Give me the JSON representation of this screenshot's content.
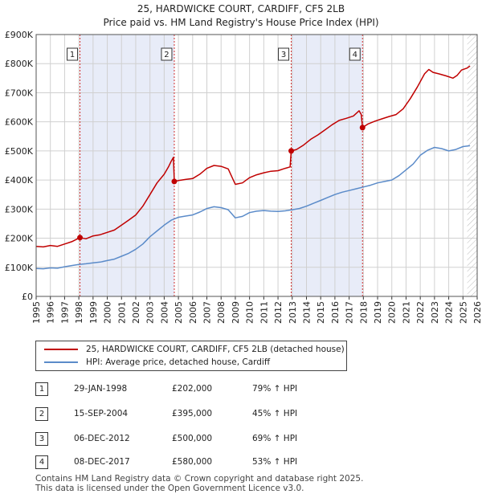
{
  "title_line1": "25, HARDWICKE COURT, CARDIFF, CF5 2LB",
  "title_line2": "Price paid vs. HM Land Registry's House Price Index (HPI)",
  "colors": {
    "property": "#c00000",
    "hpi": "#5b8bc9",
    "shade": "#e8ecf8",
    "grid": "#d0d0d0"
  },
  "chart_data": {
    "type": "line",
    "xlim": [
      1995,
      2026
    ],
    "ylim": [
      0,
      900000
    ],
    "x_ticks": [
      "1995",
      "1996",
      "1997",
      "1998",
      "1999",
      "2000",
      "2001",
      "2002",
      "2003",
      "2004",
      "2005",
      "2006",
      "2007",
      "2008",
      "2009",
      "2010",
      "2011",
      "2012",
      "2013",
      "2014",
      "2015",
      "2016",
      "2017",
      "2018",
      "2019",
      "2020",
      "2021",
      "2022",
      "2023",
      "2024",
      "2025",
      "2026"
    ],
    "y_ticks": [
      {
        "value": 0,
        "label": "£0"
      },
      {
        "value": 100000,
        "label": "£100K"
      },
      {
        "value": 200000,
        "label": "£200K"
      },
      {
        "value": 300000,
        "label": "£300K"
      },
      {
        "value": 400000,
        "label": "£400K"
      },
      {
        "value": 500000,
        "label": "£500K"
      },
      {
        "value": 600000,
        "label": "£600K"
      },
      {
        "value": 700000,
        "label": "£700K"
      },
      {
        "value": 800000,
        "label": "£800K"
      },
      {
        "value": 900000,
        "label": "£900K"
      }
    ],
    "shaded_ranges": [
      [
        1998.08,
        2004.71
      ],
      [
        2012.93,
        2017.94
      ]
    ],
    "hatched_from": 2025.3,
    "series": [
      {
        "name": "25, HARDWICKE COURT, CARDIFF, CF5 2LB (detached house)",
        "color": "#c00000",
        "points": [
          [
            1995.0,
            172000
          ],
          [
            1995.5,
            170000
          ],
          [
            1996.0,
            175000
          ],
          [
            1996.5,
            172000
          ],
          [
            1997.0,
            180000
          ],
          [
            1997.5,
            188000
          ],
          [
            1998.08,
            202000
          ],
          [
            1998.5,
            198000
          ],
          [
            1999.0,
            208000
          ],
          [
            1999.5,
            212000
          ],
          [
            2000.0,
            220000
          ],
          [
            2000.5,
            228000
          ],
          [
            2001.0,
            245000
          ],
          [
            2001.5,
            262000
          ],
          [
            2002.0,
            280000
          ],
          [
            2002.5,
            310000
          ],
          [
            2003.0,
            350000
          ],
          [
            2003.5,
            390000
          ],
          [
            2004.0,
            420000
          ],
          [
            2004.3,
            445000
          ],
          [
            2004.5,
            465000
          ],
          [
            2004.65,
            478000
          ],
          [
            2004.71,
            395000
          ],
          [
            2005.0,
            398000
          ],
          [
            2005.5,
            402000
          ],
          [
            2006.0,
            405000
          ],
          [
            2006.5,
            420000
          ],
          [
            2007.0,
            440000
          ],
          [
            2007.5,
            450000
          ],
          [
            2008.0,
            447000
          ],
          [
            2008.5,
            438000
          ],
          [
            2009.0,
            385000
          ],
          [
            2009.5,
            390000
          ],
          [
            2010.0,
            408000
          ],
          [
            2010.5,
            418000
          ],
          [
            2011.0,
            425000
          ],
          [
            2011.5,
            430000
          ],
          [
            2012.0,
            432000
          ],
          [
            2012.5,
            440000
          ],
          [
            2012.85,
            445000
          ],
          [
            2012.93,
            500000
          ],
          [
            2013.3,
            505000
          ],
          [
            2013.8,
            520000
          ],
          [
            2014.3,
            540000
          ],
          [
            2014.8,
            555000
          ],
          [
            2015.3,
            572000
          ],
          [
            2015.8,
            590000
          ],
          [
            2016.3,
            605000
          ],
          [
            2016.8,
            612000
          ],
          [
            2017.3,
            620000
          ],
          [
            2017.7,
            638000
          ],
          [
            2017.85,
            625000
          ],
          [
            2017.94,
            580000
          ],
          [
            2018.3,
            592000
          ],
          [
            2018.8,
            602000
          ],
          [
            2019.3,
            610000
          ],
          [
            2019.8,
            618000
          ],
          [
            2020.3,
            625000
          ],
          [
            2020.8,
            645000
          ],
          [
            2021.3,
            680000
          ],
          [
            2021.8,
            720000
          ],
          [
            2022.3,
            765000
          ],
          [
            2022.6,
            780000
          ],
          [
            2022.9,
            770000
          ],
          [
            2023.3,
            765000
          ],
          [
            2023.8,
            758000
          ],
          [
            2024.3,
            750000
          ],
          [
            2024.6,
            760000
          ],
          [
            2024.9,
            778000
          ],
          [
            2025.3,
            785000
          ],
          [
            2025.5,
            792000
          ]
        ]
      },
      {
        "name": "HPI: Average price, detached house, Cardiff",
        "color": "#5b8bc9",
        "points": [
          [
            1995.0,
            96000
          ],
          [
            1995.5,
            95000
          ],
          [
            1996.0,
            98000
          ],
          [
            1996.5,
            97000
          ],
          [
            1997.0,
            102000
          ],
          [
            1997.5,
            106000
          ],
          [
            1998.0,
            110000
          ],
          [
            1998.5,
            112000
          ],
          [
            1999.0,
            115000
          ],
          [
            1999.5,
            118000
          ],
          [
            2000.0,
            123000
          ],
          [
            2000.5,
            128000
          ],
          [
            2001.0,
            138000
          ],
          [
            2001.5,
            148000
          ],
          [
            2002.0,
            162000
          ],
          [
            2002.5,
            180000
          ],
          [
            2003.0,
            205000
          ],
          [
            2003.5,
            225000
          ],
          [
            2004.0,
            245000
          ],
          [
            2004.5,
            262000
          ],
          [
            2005.0,
            272000
          ],
          [
            2005.5,
            276000
          ],
          [
            2006.0,
            280000
          ],
          [
            2006.5,
            290000
          ],
          [
            2007.0,
            302000
          ],
          [
            2007.5,
            308000
          ],
          [
            2008.0,
            305000
          ],
          [
            2008.5,
            298000
          ],
          [
            2009.0,
            270000
          ],
          [
            2009.5,
            275000
          ],
          [
            2010.0,
            288000
          ],
          [
            2010.5,
            293000
          ],
          [
            2011.0,
            295000
          ],
          [
            2011.5,
            293000
          ],
          [
            2012.0,
            292000
          ],
          [
            2012.5,
            294000
          ],
          [
            2013.0,
            298000
          ],
          [
            2013.5,
            302000
          ],
          [
            2014.0,
            310000
          ],
          [
            2014.5,
            320000
          ],
          [
            2015.0,
            330000
          ],
          [
            2015.5,
            340000
          ],
          [
            2016.0,
            350000
          ],
          [
            2016.5,
            358000
          ],
          [
            2017.0,
            364000
          ],
          [
            2017.5,
            370000
          ],
          [
            2018.0,
            376000
          ],
          [
            2018.5,
            382000
          ],
          [
            2019.0,
            390000
          ],
          [
            2019.5,
            395000
          ],
          [
            2020.0,
            400000
          ],
          [
            2020.5,
            415000
          ],
          [
            2021.0,
            435000
          ],
          [
            2021.5,
            455000
          ],
          [
            2022.0,
            485000
          ],
          [
            2022.5,
            502000
          ],
          [
            2023.0,
            512000
          ],
          [
            2023.5,
            508000
          ],
          [
            2024.0,
            500000
          ],
          [
            2024.5,
            505000
          ],
          [
            2025.0,
            515000
          ],
          [
            2025.5,
            518000
          ]
        ]
      }
    ],
    "sales": [
      {
        "num": "1",
        "x": 1998.08,
        "y": 202000
      },
      {
        "num": "2",
        "x": 2004.71,
        "y": 395000
      },
      {
        "num": "3",
        "x": 2012.93,
        "y": 500000
      },
      {
        "num": "4",
        "x": 2017.94,
        "y": 580000
      }
    ]
  },
  "legend": {
    "property_label": "25, HARDWICKE COURT, CARDIFF, CF5 2LB (detached house)",
    "hpi_label": "HPI: Average price, detached house, Cardiff"
  },
  "transactions": [
    {
      "num": "1",
      "date": "29-JAN-1998",
      "price": "£202,000",
      "hpi": "79% ↑ HPI"
    },
    {
      "num": "2",
      "date": "15-SEP-2004",
      "price": "£395,000",
      "hpi": "45% ↑ HPI"
    },
    {
      "num": "3",
      "date": "06-DEC-2012",
      "price": "£500,000",
      "hpi": "69% ↑ HPI"
    },
    {
      "num": "4",
      "date": "08-DEC-2017",
      "price": "£580,000",
      "hpi": "53% ↑ HPI"
    }
  ],
  "footer": {
    "line1": "Contains HM Land Registry data © Crown copyright and database right 2025.",
    "line2": "This data is licensed under the Open Government Licence v3.0."
  }
}
